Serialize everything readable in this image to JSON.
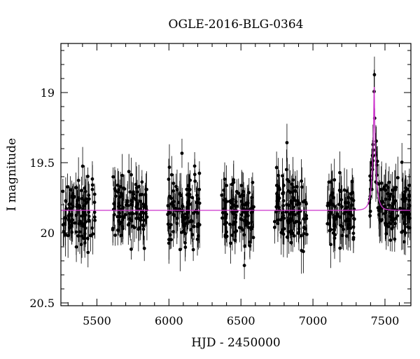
{
  "chart_data": {
    "type": "scatter",
    "title": "OGLE-2016-BLG-0364",
    "xlabel": "HJD - 2450000",
    "ylabel": "I magnitude",
    "xlim": [
      5250,
      7680
    ],
    "ylim": [
      20.52,
      18.65
    ],
    "y_inverted": true,
    "x_ticks": [
      5500,
      6000,
      6500,
      7000,
      7500
    ],
    "y_ticks": [
      19,
      19.5,
      20,
      20.5
    ],
    "y_tick_labels": [
      "19",
      "19.5",
      "20",
      "20.5"
    ],
    "baseline_mag": 19.84,
    "peak_mag": 18.96,
    "peak_time": 7425,
    "model_color": "#cc33cc",
    "point_color": "#000000",
    "seasons": [
      {
        "start": 5260,
        "end": 5490
      },
      {
        "start": 5610,
        "end": 5850
      },
      {
        "start": 5990,
        "end": 6220
      },
      {
        "start": 6360,
        "end": 6590
      },
      {
        "start": 6730,
        "end": 6960
      },
      {
        "start": 7100,
        "end": 7290
      },
      {
        "start": 7390,
        "end": 7680
      }
    ]
  }
}
